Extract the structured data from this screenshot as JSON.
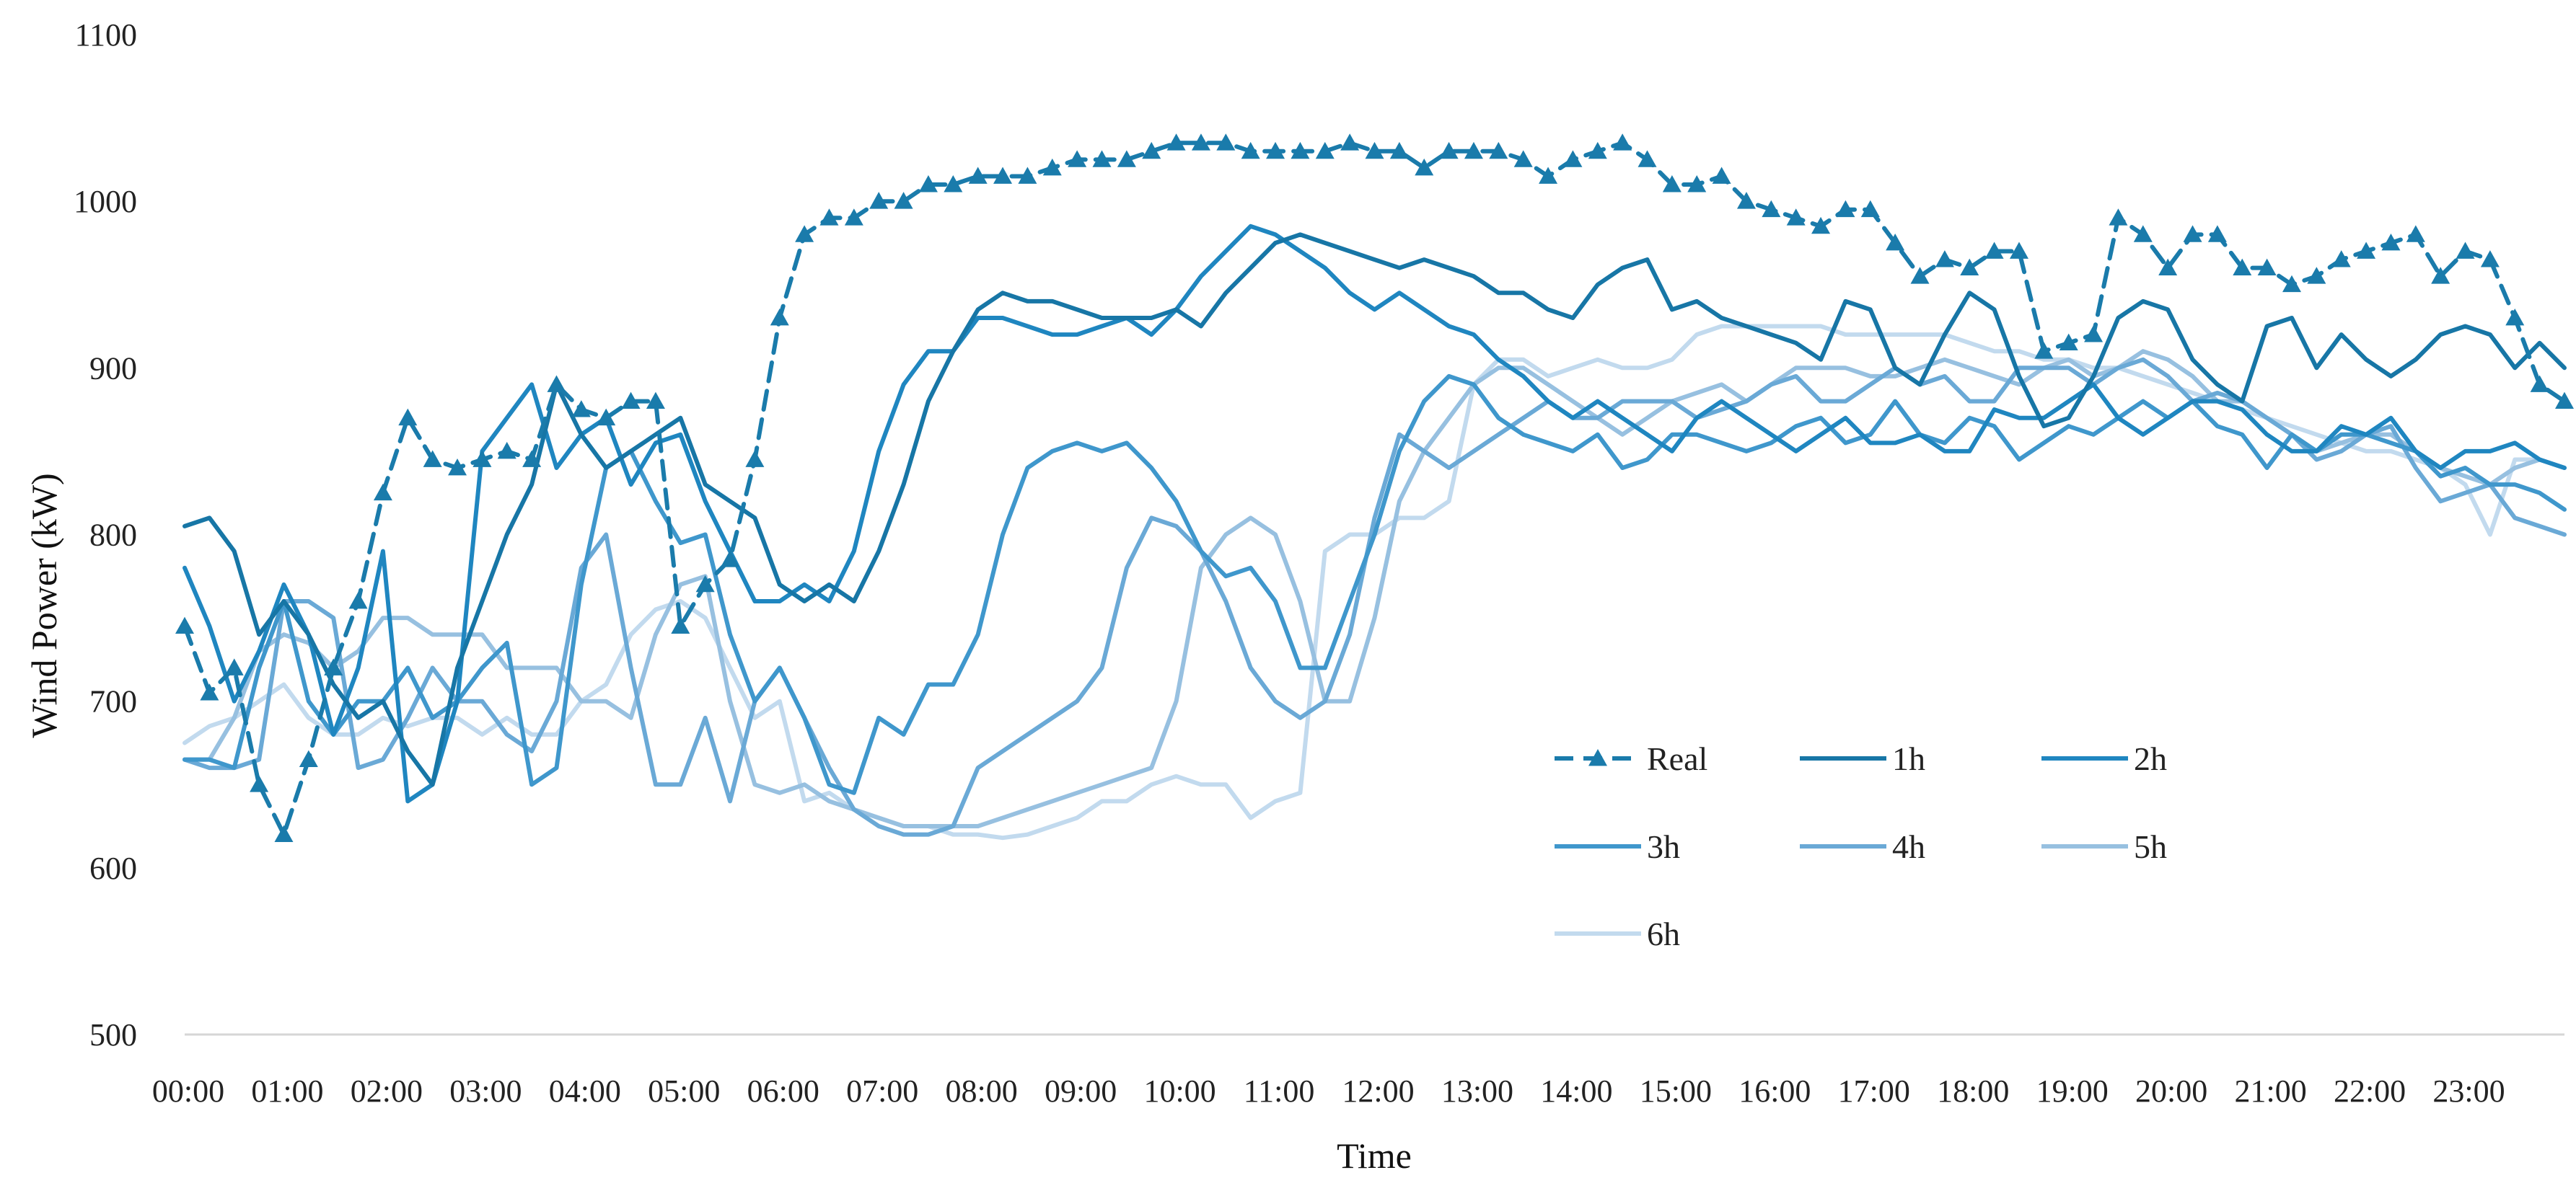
{
  "chart_data": {
    "type": "line",
    "xlabel": "Time",
    "ylabel": "Wind Power  (kW)",
    "ylim": [
      500,
      1100
    ],
    "yticks": [
      500,
      600,
      700,
      800,
      900,
      1000,
      1100
    ],
    "xlim": [
      0,
      96
    ],
    "grid": "bottom baseline only",
    "legend_position": "center-right",
    "tick_labels": [
      "00:00",
      "01:00",
      "02:00",
      "03:00",
      "04:00",
      "05:00",
      "06:00",
      "07:00",
      "08:00",
      "09:00",
      "10:00",
      "11:00",
      "12:00",
      "13:00",
      "14:00",
      "15:00",
      "16:00",
      "17:00",
      "18:00",
      "19:00",
      "20:00",
      "21:00",
      "22:00",
      "23:00"
    ],
    "x_note": "x values are 15-minute step indices (0 = 00:00, 4 = 01:00, ..., 95 = 23:45)",
    "series": [
      {
        "name": "Real",
        "color": "#1a7bab",
        "dashed": true,
        "marker": "triangle",
        "values": [
          745,
          705,
          720,
          650,
          620,
          665,
          720,
          760,
          825,
          870,
          845,
          840,
          845,
          850,
          845,
          890,
          875,
          870,
          880,
          880,
          745,
          770,
          785,
          845,
          930,
          980,
          990,
          990,
          1000,
          1000,
          1010,
          1010,
          1015,
          1015,
          1015,
          1020,
          1025,
          1025,
          1025,
          1030,
          1035,
          1035,
          1035,
          1030,
          1030,
          1030,
          1030,
          1035,
          1030,
          1030,
          1020,
          1030,
          1030,
          1030,
          1025,
          1015,
          1025,
          1030,
          1035,
          1025,
          1010,
          1010,
          1015,
          1000,
          995,
          990,
          985,
          995,
          995,
          975,
          955,
          965,
          960,
          970,
          970,
          910,
          915,
          920,
          990,
          980,
          960,
          980,
          980,
          960,
          960,
          950,
          955,
          965,
          970,
          975,
          980,
          955,
          970,
          965,
          930,
          890,
          880
        ]
      },
      {
        "name": "1h",
        "color": "#1776a6",
        "dashed": false,
        "values": [
          805,
          810,
          790,
          740,
          760,
          740,
          710,
          690,
          700,
          670,
          650,
          720,
          760,
          800,
          830,
          890,
          860,
          840,
          850,
          860,
          870,
          830,
          820,
          810,
          770,
          760,
          770,
          760,
          790,
          830,
          880,
          910,
          935,
          945,
          940,
          940,
          935,
          930,
          930,
          930,
          935,
          925,
          945,
          960,
          975,
          980,
          975,
          970,
          965,
          960,
          965,
          960,
          955,
          945,
          945,
          935,
          930,
          950,
          960,
          965,
          935,
          940,
          930,
          925,
          920,
          915,
          905,
          940,
          935,
          900,
          890,
          920,
          945,
          935,
          895,
          865,
          870,
          895,
          930,
          940,
          935,
          905,
          890,
          880,
          925,
          930,
          900,
          920,
          905,
          895,
          905,
          920,
          925,
          920,
          900,
          915,
          900
        ]
      },
      {
        "name": "2h",
        "color": "#1f86c0",
        "dashed": false,
        "values": [
          780,
          745,
          700,
          730,
          770,
          740,
          680,
          720,
          790,
          640,
          650,
          700,
          850,
          870,
          890,
          840,
          860,
          870,
          830,
          855,
          860,
          820,
          790,
          760,
          760,
          770,
          760,
          790,
          850,
          890,
          910,
          910,
          930,
          930,
          925,
          920,
          920,
          925,
          930,
          920,
          935,
          955,
          970,
          985,
          980,
          970,
          960,
          945,
          935,
          945,
          935,
          925,
          920,
          905,
          895,
          880,
          870,
          880,
          870,
          860,
          850,
          870,
          880,
          870,
          860,
          850,
          860,
          870,
          855,
          855,
          860,
          850,
          850,
          875,
          870,
          870,
          880,
          890,
          870,
          860,
          870,
          880,
          880,
          875,
          860,
          850,
          850,
          865,
          860,
          870,
          850,
          840,
          850,
          850,
          855,
          845,
          840
        ]
      },
      {
        "name": "3h",
        "color": "#3f97cc",
        "dashed": false,
        "values": [
          665,
          665,
          660,
          720,
          760,
          700,
          680,
          700,
          700,
          720,
          690,
          700,
          720,
          735,
          650,
          660,
          770,
          840,
          850,
          820,
          795,
          800,
          740,
          700,
          720,
          690,
          650,
          645,
          690,
          680,
          710,
          710,
          740,
          800,
          840,
          850,
          855,
          850,
          855,
          840,
          820,
          790,
          775,
          780,
          760,
          720,
          720,
          760,
          800,
          850,
          880,
          895,
          890,
          870,
          860,
          855,
          850,
          860,
          840,
          845,
          860,
          860,
          855,
          850,
          855,
          865,
          870,
          855,
          860,
          880,
          860,
          855,
          870,
          865,
          845,
          855,
          865,
          860,
          870,
          880,
          870,
          880,
          865,
          860,
          840,
          860,
          850,
          860,
          860,
          855,
          850,
          835,
          840,
          830,
          830,
          825,
          815
        ]
      },
      {
        "name": "4h",
        "color": "#6aa9d6",
        "dashed": false,
        "values": [
          665,
          660,
          660,
          665,
          760,
          760,
          750,
          660,
          665,
          690,
          720,
          700,
          700,
          680,
          670,
          700,
          780,
          800,
          720,
          650,
          650,
          690,
          640,
          700,
          720,
          690,
          660,
          635,
          625,
          620,
          620,
          625,
          660,
          670,
          680,
          690,
          700,
          720,
          780,
          810,
          805,
          790,
          760,
          720,
          700,
          690,
          700,
          740,
          810,
          860,
          850,
          840,
          850,
          860,
          870,
          880,
          870,
          870,
          880,
          880,
          880,
          870,
          875,
          880,
          890,
          895,
          880,
          880,
          890,
          900,
          890,
          895,
          880,
          880,
          900,
          900,
          900,
          890,
          900,
          905,
          895,
          880,
          885,
          880,
          870,
          860,
          845,
          850,
          860,
          865,
          840,
          820,
          825,
          830,
          810,
          805,
          800
        ]
      },
      {
        "name": "5h",
        "color": "#97c0e0",
        "dashed": false,
        "values": [
          665,
          665,
          690,
          730,
          740,
          735,
          720,
          730,
          750,
          750,
          740,
          740,
          740,
          720,
          720,
          720,
          700,
          700,
          690,
          740,
          770,
          775,
          700,
          650,
          645,
          650,
          640,
          635,
          630,
          625,
          625,
          625,
          625,
          630,
          635,
          640,
          645,
          650,
          655,
          660,
          700,
          780,
          800,
          810,
          800,
          760,
          700,
          700,
          750,
          820,
          850,
          870,
          890,
          900,
          900,
          890,
          880,
          870,
          860,
          870,
          880,
          885,
          890,
          880,
          890,
          900,
          900,
          900,
          895,
          895,
          900,
          905,
          900,
          895,
          890,
          900,
          905,
          895,
          900,
          910,
          905,
          895,
          880,
          880,
          870,
          860,
          850,
          855,
          860,
          860,
          850,
          840,
          835,
          830,
          840,
          845,
          840
        ]
      },
      {
        "name": "6h",
        "color": "#c2daee",
        "dashed": false,
        "values": [
          675,
          685,
          690,
          700,
          710,
          690,
          680,
          680,
          690,
          685,
          690,
          690,
          680,
          690,
          680,
          680,
          700,
          710,
          740,
          755,
          760,
          750,
          720,
          690,
          700,
          640,
          645,
          635,
          630,
          625,
          625,
          620,
          620,
          618,
          620,
          625,
          630,
          640,
          640,
          650,
          655,
          650,
          650,
          630,
          640,
          645,
          790,
          800,
          800,
          810,
          810,
          820,
          890,
          905,
          905,
          895,
          900,
          905,
          900,
          900,
          905,
          920,
          925,
          925,
          925,
          925,
          925,
          920,
          920,
          920,
          920,
          920,
          915,
          910,
          910,
          905,
          905,
          900,
          900,
          895,
          890,
          885,
          880,
          875,
          870,
          865,
          860,
          855,
          850,
          850,
          845,
          840,
          830,
          800,
          845,
          845,
          840
        ]
      }
    ]
  }
}
